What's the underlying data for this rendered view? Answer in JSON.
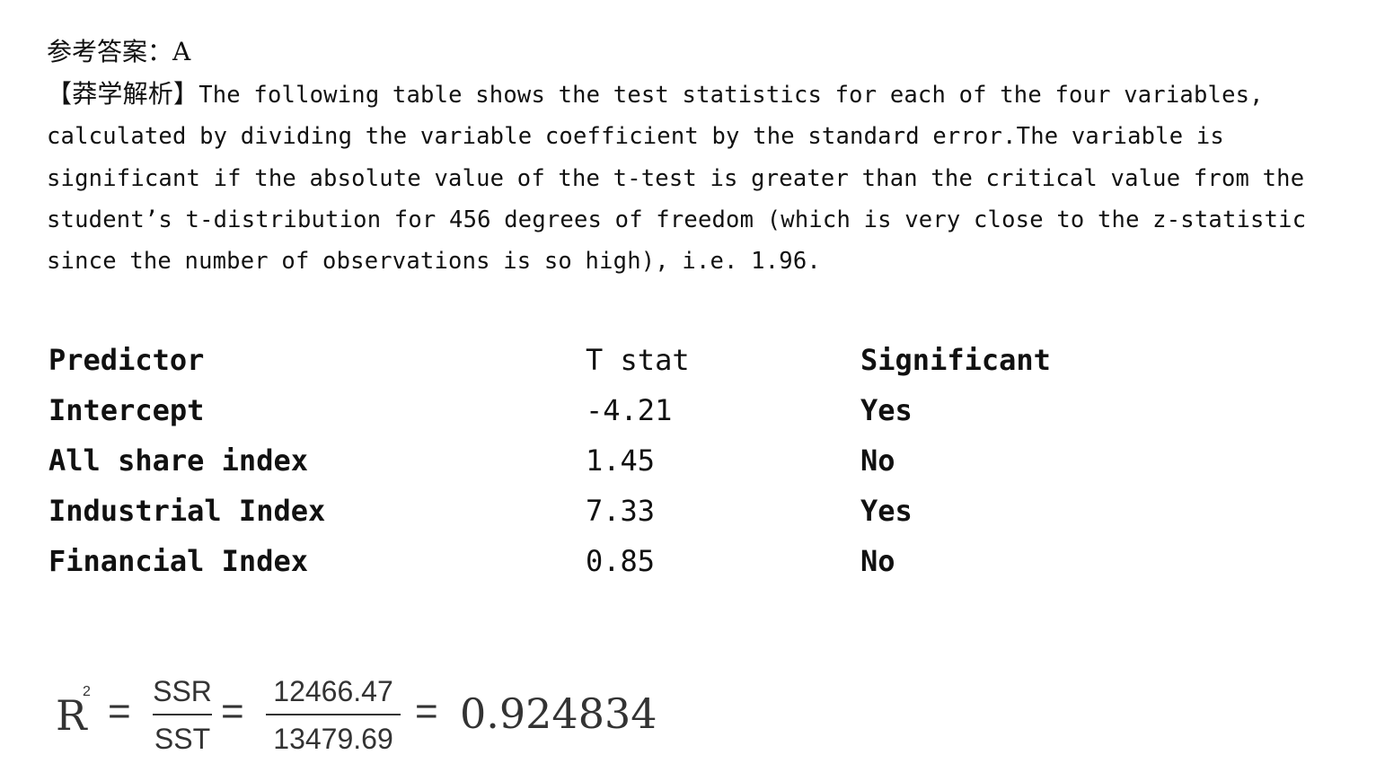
{
  "answer": {
    "label": "参考答案：",
    "value": "A"
  },
  "explanation": {
    "label": "【莽学解析】",
    "text": "The following table shows the test statistics for each of the four variables, calculated by dividing the variable coefficient by the standard error.The variable is significant if the absolute value of the t-test is greater than the critical value from the student’s t-distribution for 456 degrees of freedom (which is very close to the z-statistic since the number of observations is so high), i.e. 1.96."
  },
  "table": {
    "headers": [
      "Predictor",
      "T stat",
      "Significant"
    ],
    "rows": [
      [
        "Intercept",
        "-4.21",
        "Yes"
      ],
      [
        "All share index",
        "1.45",
        "No"
      ],
      [
        "Industrial Index",
        "7.33",
        "Yes"
      ],
      [
        "Financial Index",
        "0.85",
        "No"
      ]
    ]
  },
  "formula": {
    "lhs": "R",
    "lhs_sup": "2",
    "eq": "=",
    "frac1_num": "SSR",
    "frac1_den": "SST",
    "frac2_num": "12466.47",
    "frac2_den": "13479.69",
    "result": "0.924834"
  }
}
